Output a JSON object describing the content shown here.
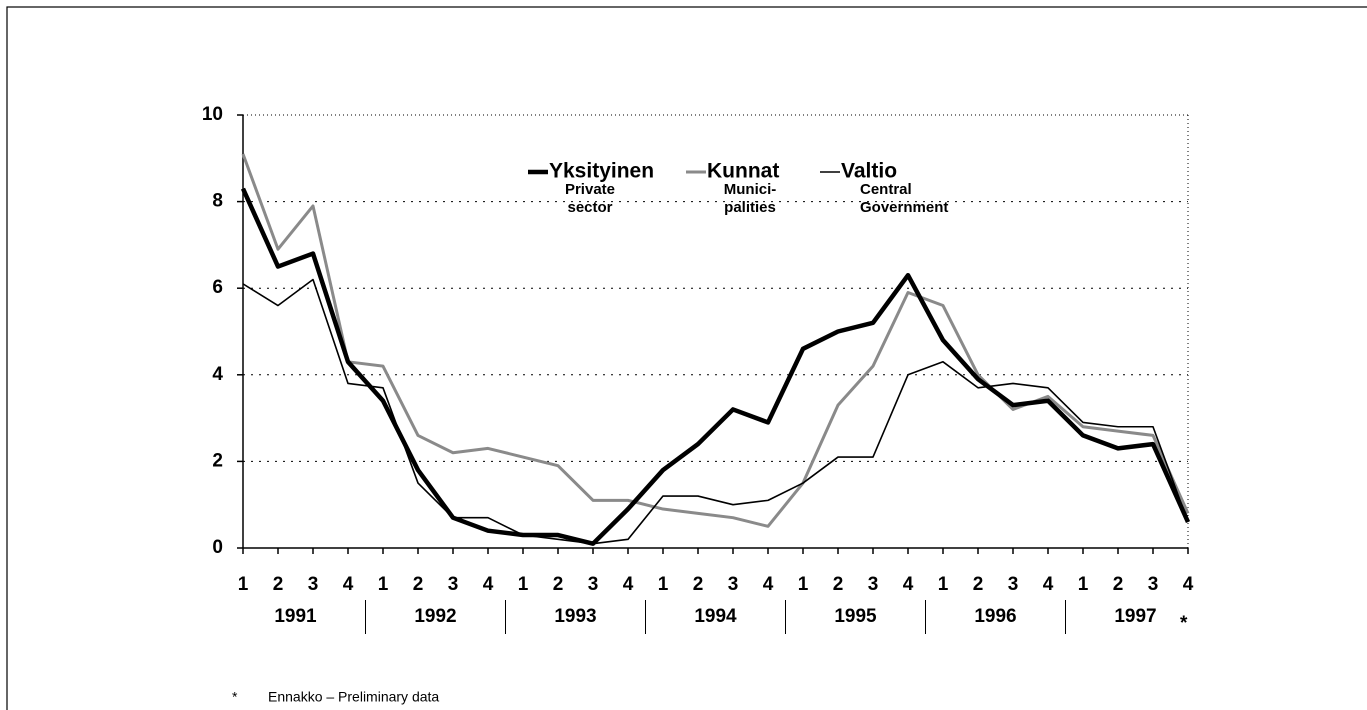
{
  "chart_data": {
    "type": "line",
    "categories": [
      "1",
      "2",
      "3",
      "4",
      "1",
      "2",
      "3",
      "4",
      "1",
      "2",
      "3",
      "4",
      "1",
      "2",
      "3",
      "4",
      "1",
      "2",
      "3",
      "4",
      "1",
      "2",
      "3",
      "4",
      "1",
      "2",
      "3",
      "4"
    ],
    "years": [
      "1991",
      "1992",
      "1993",
      "1994",
      "1995",
      "1996",
      "1997"
    ],
    "year_note": "*",
    "series": [
      {
        "name": "Yksityinen",
        "name_en": [
          "Private",
          "sector"
        ],
        "color": "#000000",
        "width": 4.5,
        "values": [
          8.3,
          6.5,
          6.8,
          4.3,
          3.4,
          1.8,
          0.7,
          0.4,
          0.3,
          0.3,
          0.1,
          0.9,
          1.8,
          2.4,
          3.2,
          2.9,
          4.6,
          5.0,
          5.2,
          6.3,
          4.8,
          3.9,
          3.3,
          3.4,
          2.6,
          2.3,
          2.4,
          0.6
        ]
      },
      {
        "name": "Kunnat",
        "name_en": [
          "Munici-",
          "palities"
        ],
        "color": "#8a8a8a",
        "width": 3,
        "values": [
          9.1,
          6.9,
          7.9,
          4.3,
          4.2,
          2.6,
          2.2,
          2.3,
          2.1,
          1.9,
          1.1,
          1.1,
          0.9,
          0.8,
          0.7,
          0.5,
          1.5,
          3.3,
          4.2,
          5.9,
          5.6,
          4.0,
          3.2,
          3.5,
          2.8,
          2.7,
          2.6,
          0.8
        ]
      },
      {
        "name": "Valtio",
        "name_en": [
          "Central",
          "Government"
        ],
        "color": "#000000",
        "width": 1.6,
        "values": [
          6.1,
          5.6,
          6.2,
          3.8,
          3.7,
          1.5,
          0.7,
          0.7,
          0.3,
          0.2,
          0.1,
          0.2,
          1.2,
          1.2,
          1.0,
          1.1,
          1.5,
          2.1,
          2.1,
          4.0,
          4.3,
          3.7,
          3.8,
          3.7,
          2.9,
          2.8,
          2.8,
          0.6
        ]
      }
    ],
    "ylim": [
      0,
      10
    ],
    "yticks": [
      0,
      2,
      4,
      6,
      8,
      10
    ],
    "grid": true,
    "footnote": {
      "mark": "*",
      "text": "Ennakko – Preliminary data"
    }
  }
}
